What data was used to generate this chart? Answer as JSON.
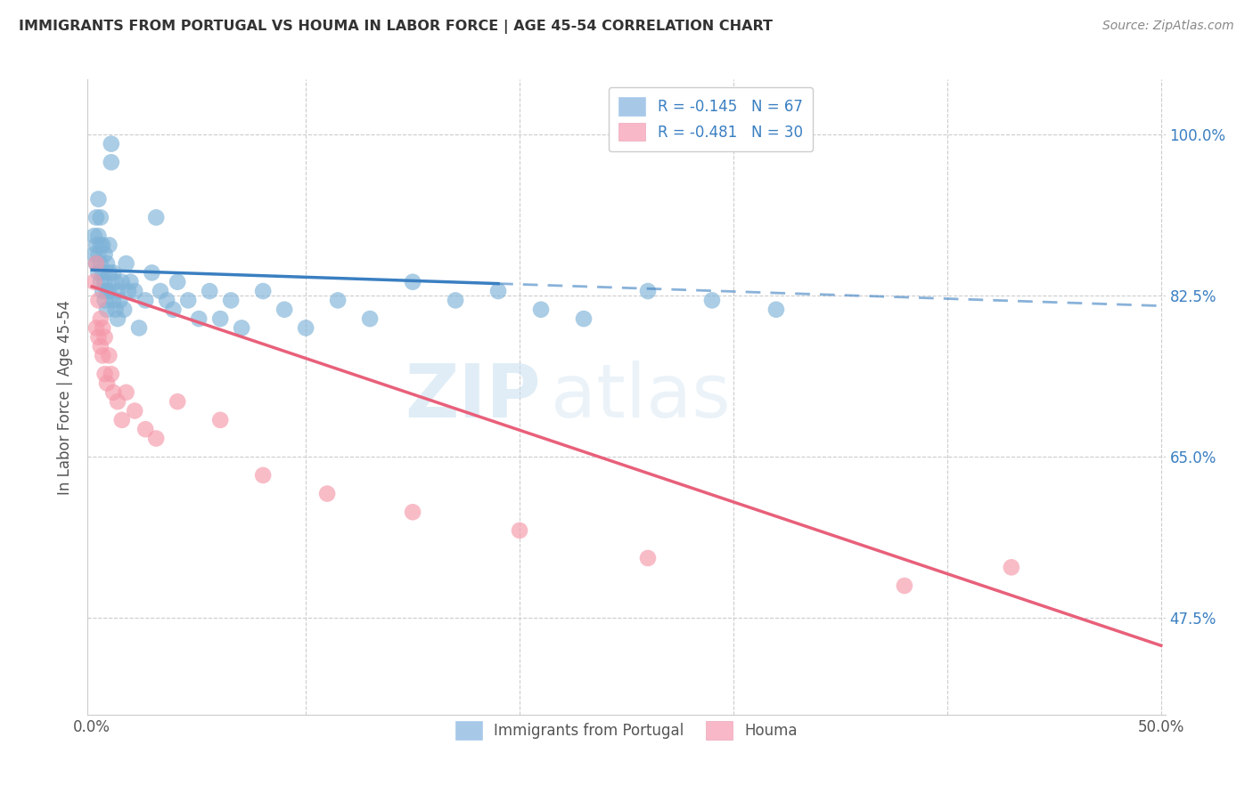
{
  "title": "IMMIGRANTS FROM PORTUGAL VS HOUMA IN LABOR FORCE | AGE 45-54 CORRELATION CHART",
  "source": "Source: ZipAtlas.com",
  "ylabel": "In Labor Force | Age 45-54",
  "ytick_labels": [
    "100.0%",
    "82.5%",
    "65.0%",
    "47.5%"
  ],
  "ytick_values": [
    1.0,
    0.825,
    0.65,
    0.475
  ],
  "xlim": [
    -0.002,
    0.502
  ],
  "ylim": [
    0.37,
    1.06
  ],
  "legend_r_portugal": "R = -0.145",
  "legend_n_portugal": "N = 67",
  "legend_r_houma": "R = -0.481",
  "legend_n_houma": "N = 30",
  "watermark_zip": "ZIP",
  "watermark_atlas": "atlas",
  "blue_dot_color": "#7fb3d8",
  "pink_dot_color": "#f599aa",
  "blue_line_color": "#3a7fc1",
  "pink_line_color": "#e8607a",
  "blue_legend_color": "#a8c8e8",
  "pink_legend_color": "#f8b8c8",
  "legend_text_color": "#3a7fc1",
  "title_color": "#333333",
  "source_color": "#888888",
  "axis_color": "#cccccc",
  "ylabel_color": "#555555",
  "right_tick_color": "#3a7fc1",
  "portugal_x": [
    0.001,
    0.001,
    0.002,
    0.002,
    0.002,
    0.003,
    0.003,
    0.003,
    0.003,
    0.004,
    0.004,
    0.004,
    0.004,
    0.005,
    0.005,
    0.005,
    0.006,
    0.006,
    0.006,
    0.007,
    0.007,
    0.007,
    0.008,
    0.008,
    0.008,
    0.009,
    0.009,
    0.01,
    0.01,
    0.011,
    0.011,
    0.012,
    0.012,
    0.013,
    0.014,
    0.015,
    0.016,
    0.017,
    0.018,
    0.02,
    0.022,
    0.025,
    0.028,
    0.03,
    0.032,
    0.035,
    0.038,
    0.04,
    0.045,
    0.05,
    0.055,
    0.06,
    0.065,
    0.07,
    0.08,
    0.09,
    0.1,
    0.115,
    0.13,
    0.15,
    0.17,
    0.19,
    0.21,
    0.23,
    0.26,
    0.29,
    0.32
  ],
  "portugal_y": [
    0.87,
    0.89,
    0.86,
    0.88,
    0.91,
    0.85,
    0.87,
    0.89,
    0.93,
    0.84,
    0.86,
    0.88,
    0.91,
    0.83,
    0.85,
    0.88,
    0.82,
    0.84,
    0.87,
    0.81,
    0.83,
    0.86,
    0.83,
    0.85,
    0.88,
    0.97,
    0.99,
    0.82,
    0.85,
    0.81,
    0.84,
    0.8,
    0.83,
    0.82,
    0.84,
    0.81,
    0.86,
    0.83,
    0.84,
    0.83,
    0.79,
    0.82,
    0.85,
    0.91,
    0.83,
    0.82,
    0.81,
    0.84,
    0.82,
    0.8,
    0.83,
    0.8,
    0.82,
    0.79,
    0.83,
    0.81,
    0.79,
    0.82,
    0.8,
    0.84,
    0.82,
    0.83,
    0.81,
    0.8,
    0.83,
    0.82,
    0.81
  ],
  "houma_x": [
    0.001,
    0.002,
    0.002,
    0.003,
    0.003,
    0.004,
    0.004,
    0.005,
    0.005,
    0.006,
    0.006,
    0.007,
    0.008,
    0.009,
    0.01,
    0.012,
    0.014,
    0.016,
    0.02,
    0.025,
    0.03,
    0.04,
    0.06,
    0.08,
    0.11,
    0.15,
    0.2,
    0.26,
    0.38,
    0.43
  ],
  "houma_y": [
    0.84,
    0.79,
    0.86,
    0.78,
    0.82,
    0.77,
    0.8,
    0.76,
    0.79,
    0.74,
    0.78,
    0.73,
    0.76,
    0.74,
    0.72,
    0.71,
    0.69,
    0.72,
    0.7,
    0.68,
    0.67,
    0.71,
    0.69,
    0.63,
    0.61,
    0.59,
    0.57,
    0.54,
    0.51,
    0.53
  ],
  "blue_line_x0": 0.0,
  "blue_line_y0": 0.853,
  "blue_line_x_solid_end": 0.19,
  "blue_line_x_end": 0.5,
  "blue_line_slope": -0.078,
  "pink_line_x0": 0.0,
  "pink_line_y0": 0.835,
  "pink_line_x_end": 0.5,
  "pink_line_slope": -0.78
}
